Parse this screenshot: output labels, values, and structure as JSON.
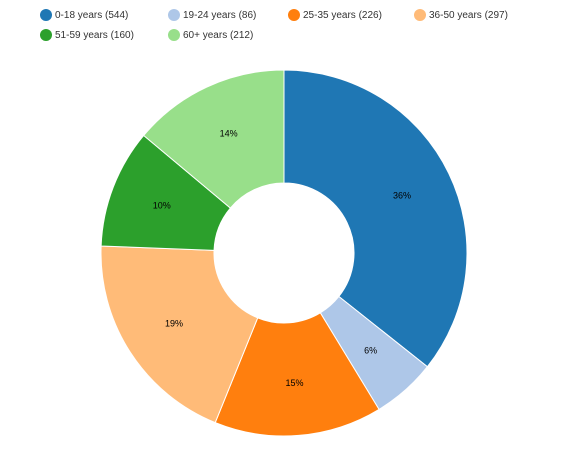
{
  "chart_data": {
    "type": "pie",
    "donut": true,
    "legend_position": "top",
    "categories": [
      "0-18 years (544)",
      "19-24 years (86)",
      "25-35 years (226)",
      "36-50 years (297)",
      "51-59 years (160)",
      "60+ years (212)"
    ],
    "values": [
      544,
      86,
      226,
      297,
      160,
      212
    ],
    "percent_labels": [
      "36%",
      "6%",
      "15%",
      "19%",
      "10%",
      "14%"
    ],
    "colors": [
      "#1f77b4",
      "#aec7e8",
      "#ff7f0e",
      "#ffbb78",
      "#2ca02c",
      "#98df8a"
    ]
  }
}
